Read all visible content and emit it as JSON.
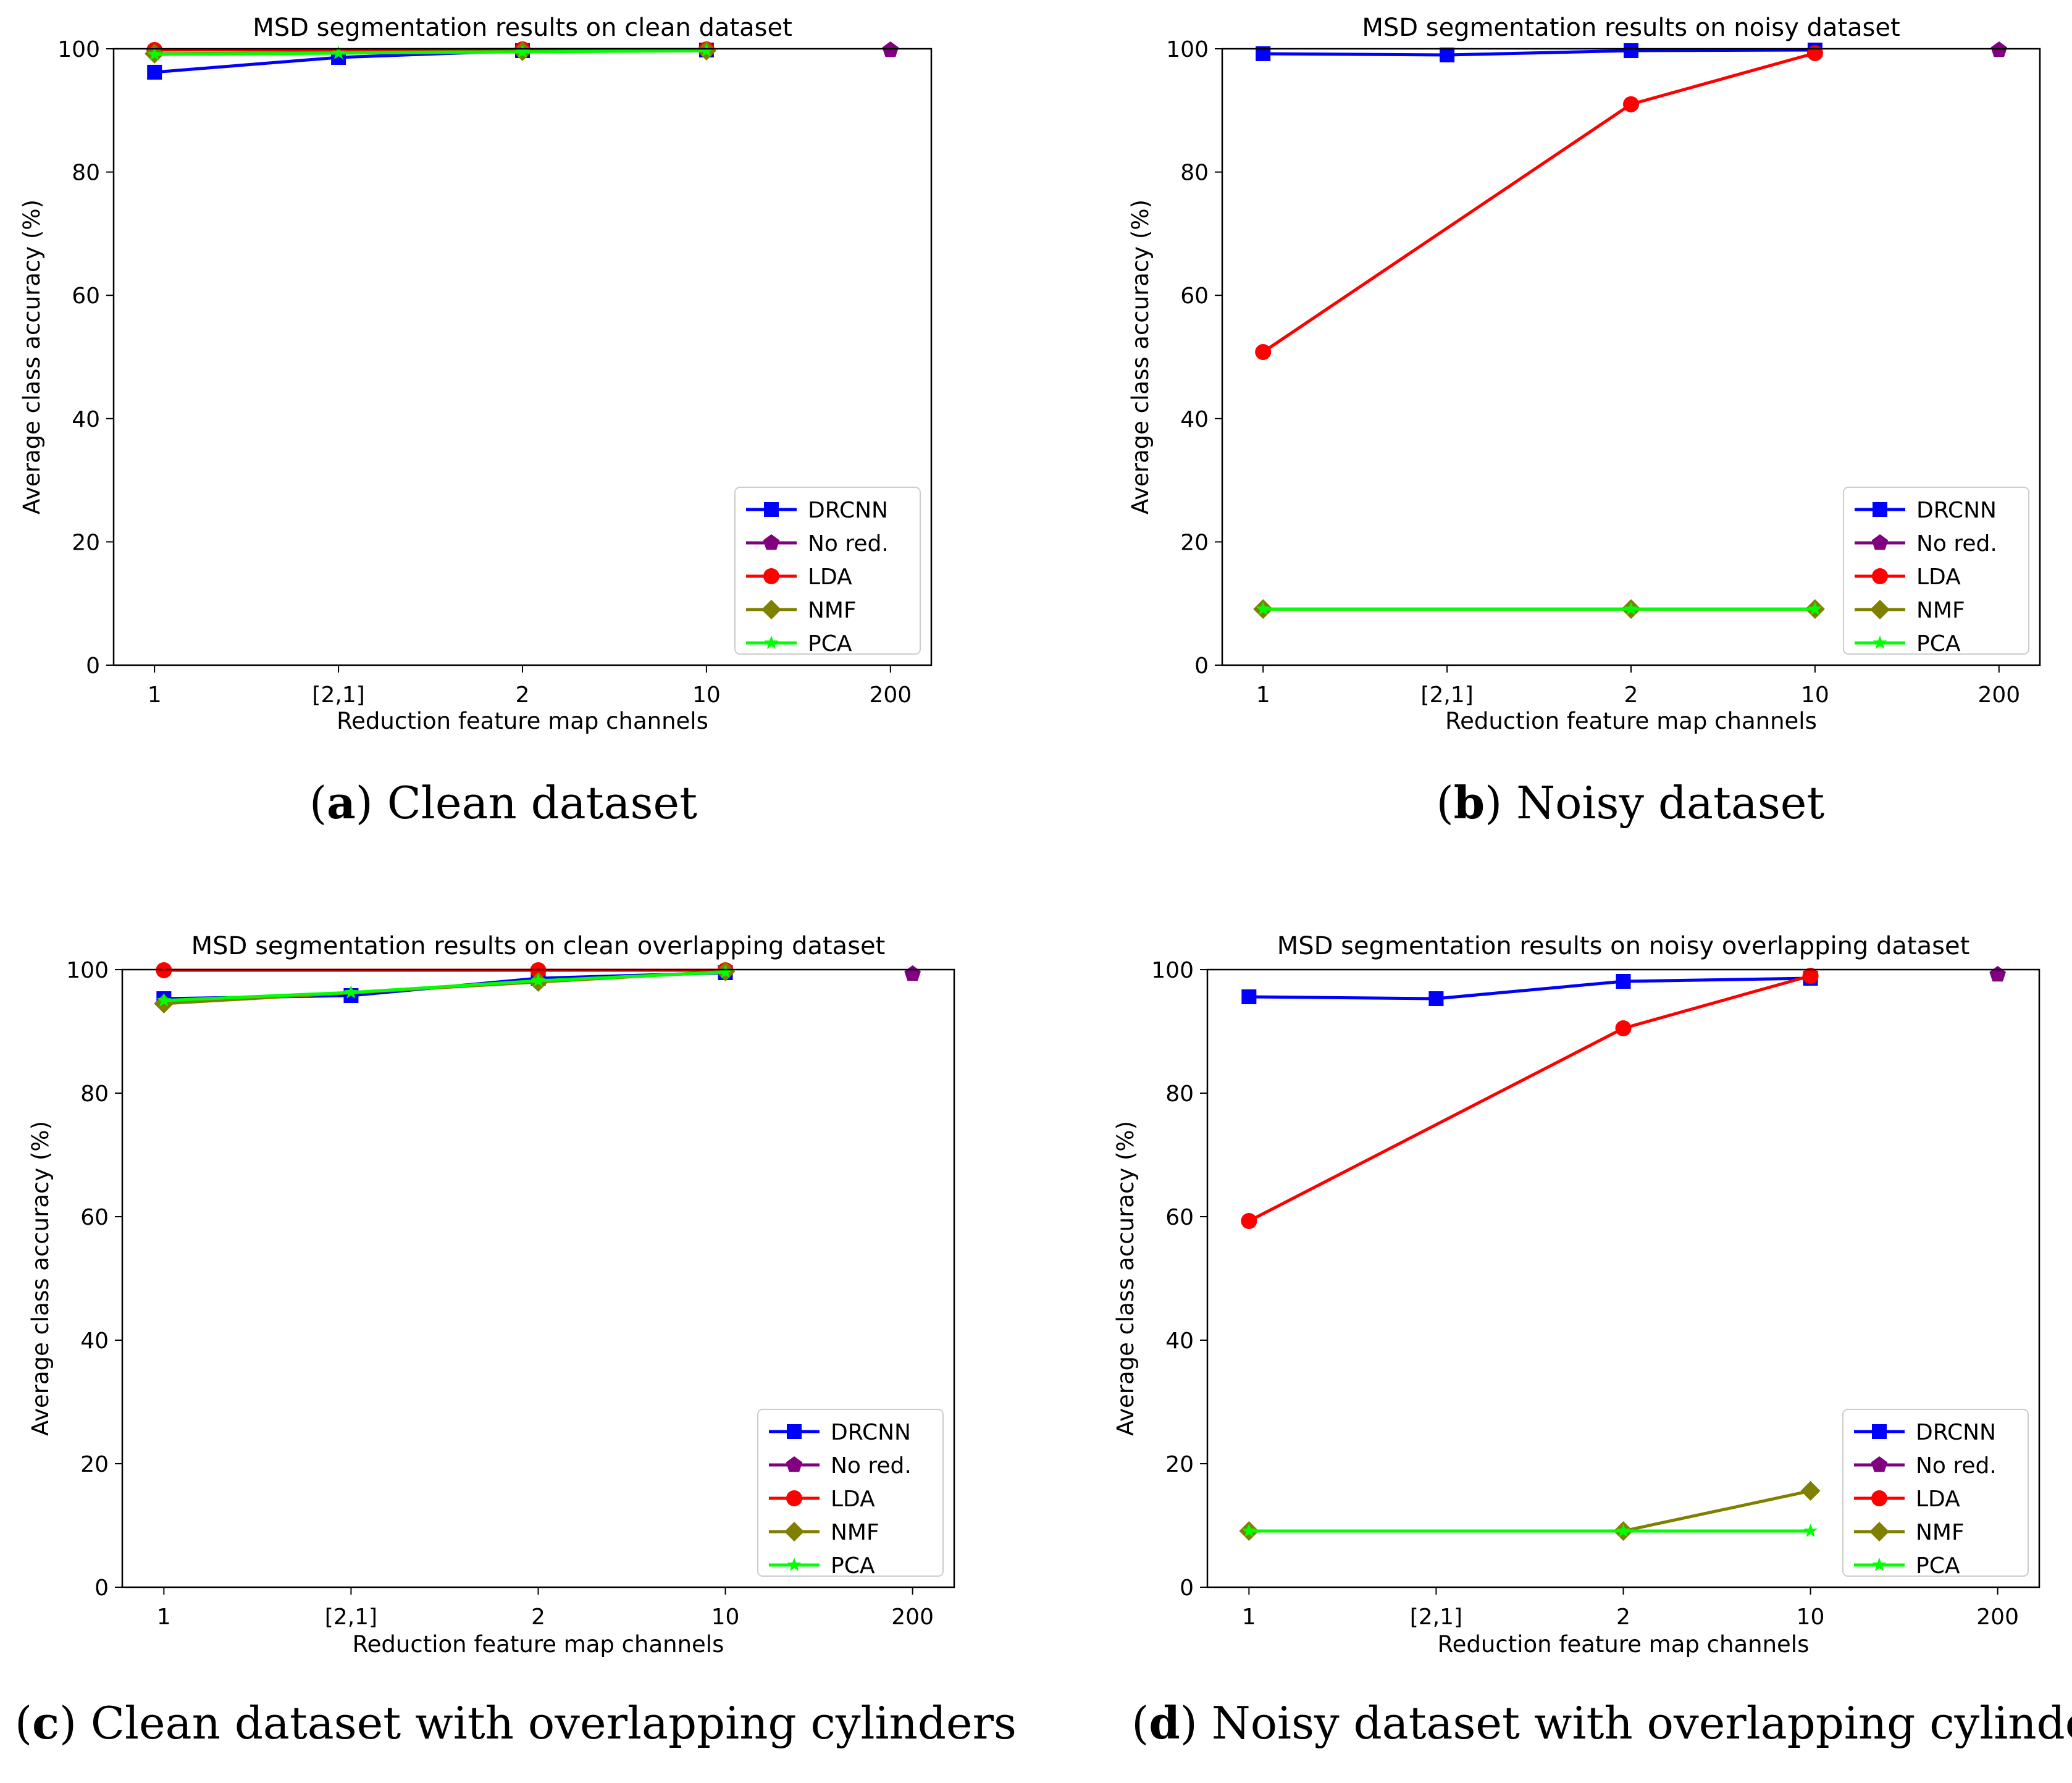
{
  "colors": {
    "DRCNN": "#0000ff",
    "No red.": "#800080",
    "LDA": "#ff0000",
    "NMF": "#808000",
    "PCA": "#00ff00"
  },
  "legend_labels": [
    "DRCNN",
    "No red.",
    "LDA",
    "NMF",
    "PCA"
  ],
  "chart_data": [
    {
      "type": "line",
      "caption_letter": "a",
      "caption_text": "Clean dataset",
      "title": "MSD segmentation results on clean dataset",
      "xlabel": "Reduction feature map channels",
      "ylabel": "Average class accuracy (%)",
      "categories": [
        "1",
        "[2,1]",
        "2",
        "10",
        "200"
      ],
      "ylim": [
        0,
        100
      ],
      "yticks": [
        0,
        20,
        40,
        60,
        80,
        100
      ],
      "legend_position": "lower-right",
      "series": [
        {
          "name": "DRCNN",
          "values": [
            96.2,
            98.6,
            99.7,
            99.8,
            null
          ]
        },
        {
          "name": "No red.",
          "values": [
            null,
            null,
            null,
            null,
            99.8
          ]
        },
        {
          "name": "LDA",
          "values": [
            99.8,
            null,
            99.9,
            99.9,
            null
          ]
        },
        {
          "name": "NMF",
          "values": [
            99.2,
            null,
            99.6,
            99.7,
            null
          ]
        },
        {
          "name": "PCA",
          "values": [
            99.1,
            99.3,
            99.5,
            99.7,
            null
          ]
        }
      ]
    },
    {
      "type": "line",
      "caption_letter": "b",
      "caption_text": "Noisy dataset",
      "title": "MSD segmentation results on noisy dataset",
      "xlabel": "Reduction feature map channels",
      "ylabel": "Average class accuracy (%)",
      "categories": [
        "1",
        "[2,1]",
        "2",
        "10",
        "200"
      ],
      "ylim": [
        0,
        100
      ],
      "yticks": [
        0,
        20,
        40,
        60,
        80,
        100
      ],
      "legend_position": "lower-right",
      "series": [
        {
          "name": "DRCNN",
          "values": [
            99.2,
            99.0,
            99.7,
            99.8,
            null
          ]
        },
        {
          "name": "No red.",
          "values": [
            null,
            null,
            null,
            null,
            99.8
          ]
        },
        {
          "name": "LDA",
          "values": [
            50.8,
            null,
            91.0,
            99.3,
            null
          ]
        },
        {
          "name": "NMF",
          "values": [
            9.1,
            null,
            9.1,
            9.1,
            null
          ]
        },
        {
          "name": "PCA",
          "values": [
            9.1,
            null,
            9.1,
            9.1,
            null
          ]
        }
      ]
    },
    {
      "type": "line",
      "caption_letter": "c",
      "caption_text": "Clean dataset with overlapping cylinders",
      "title": "MSD segmentation results on clean overlapping dataset",
      "xlabel": "Reduction feature map channels",
      "ylabel": "Average class accuracy (%)",
      "categories": [
        "1",
        "[2,1]",
        "2",
        "10",
        "200"
      ],
      "ylim": [
        0,
        100
      ],
      "yticks": [
        0,
        20,
        40,
        60,
        80,
        100
      ],
      "legend_position": "lower-right",
      "series": [
        {
          "name": "DRCNN",
          "values": [
            95.3,
            95.8,
            98.6,
            99.5,
            null
          ]
        },
        {
          "name": "No red.",
          "values": [
            null,
            null,
            null,
            null,
            99.3
          ]
        },
        {
          "name": "LDA",
          "values": [
            99.9,
            null,
            99.9,
            99.9,
            null
          ]
        },
        {
          "name": "NMF",
          "values": [
            94.5,
            null,
            98.0,
            99.7,
            null
          ]
        },
        {
          "name": "PCA",
          "values": [
            95.0,
            96.3,
            98.2,
            99.6,
            null
          ]
        }
      ]
    },
    {
      "type": "line",
      "caption_letter": "d",
      "caption_text": "Noisy dataset with overlapping cylinders",
      "title": "MSD segmentation results on noisy overlapping dataset",
      "xlabel": "Reduction feature map channels",
      "ylabel": "Average class accuracy (%)",
      "categories": [
        "1",
        "[2,1]",
        "2",
        "10",
        "200"
      ],
      "ylim": [
        0,
        100
      ],
      "yticks": [
        0,
        20,
        40,
        60,
        80,
        100
      ],
      "legend_position": "lower-right",
      "series": [
        {
          "name": "DRCNN",
          "values": [
            95.6,
            95.3,
            98.1,
            98.6,
            null
          ]
        },
        {
          "name": "No red.",
          "values": [
            null,
            null,
            null,
            null,
            99.2
          ]
        },
        {
          "name": "LDA",
          "values": [
            59.3,
            null,
            90.5,
            99.0,
            null
          ]
        },
        {
          "name": "NMF",
          "values": [
            9.1,
            null,
            9.1,
            15.6,
            null
          ]
        },
        {
          "name": "PCA",
          "values": [
            9.1,
            null,
            9.1,
            9.1,
            null
          ]
        }
      ]
    }
  ]
}
